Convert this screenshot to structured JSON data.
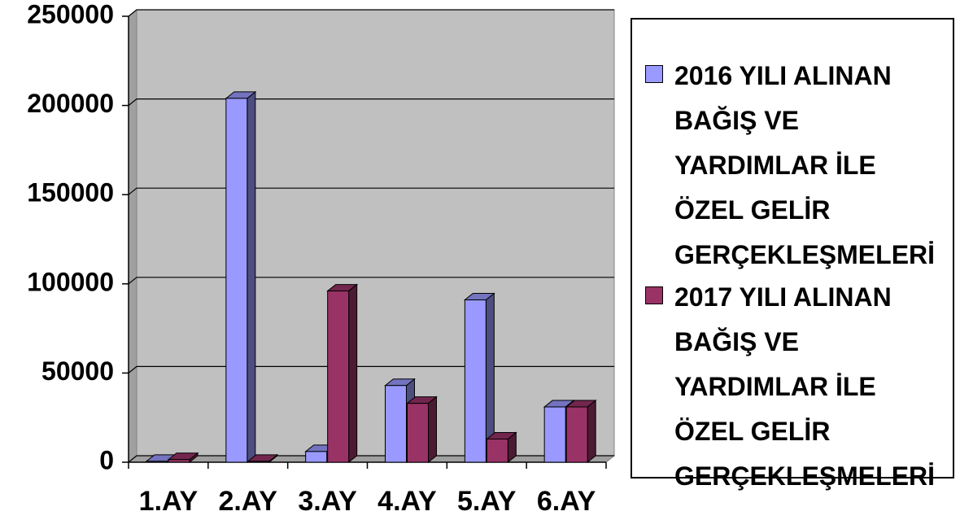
{
  "chart_data": {
    "type": "bar3d",
    "categories": [
      "1.AY",
      "2.AY",
      "3.AY",
      "4.AY",
      "5.AY",
      "6.AY"
    ],
    "series": [
      {
        "name": "2016 YILI ALINAN BAĞIŞ VE YARDIMLAR İLE ÖZEL GELİR GERÇEKLEŞMELERİ",
        "color": "#9999ff",
        "values": [
          500,
          204000,
          6000,
          43000,
          91000,
          31000
        ]
      },
      {
        "name": "2017 YILI ALINAN BAĞIŞ VE YARDIMLAR İLE ÖZEL GELİR GERÇEKLEŞMELERİ",
        "color": "#993366",
        "values": [
          1500,
          500,
          96000,
          33000,
          13000,
          31000
        ]
      }
    ],
    "ylim": [
      0,
      250000
    ],
    "yticks": [
      0,
      50000,
      100000,
      150000,
      200000,
      250000
    ],
    "grid": true,
    "legend": "right"
  }
}
